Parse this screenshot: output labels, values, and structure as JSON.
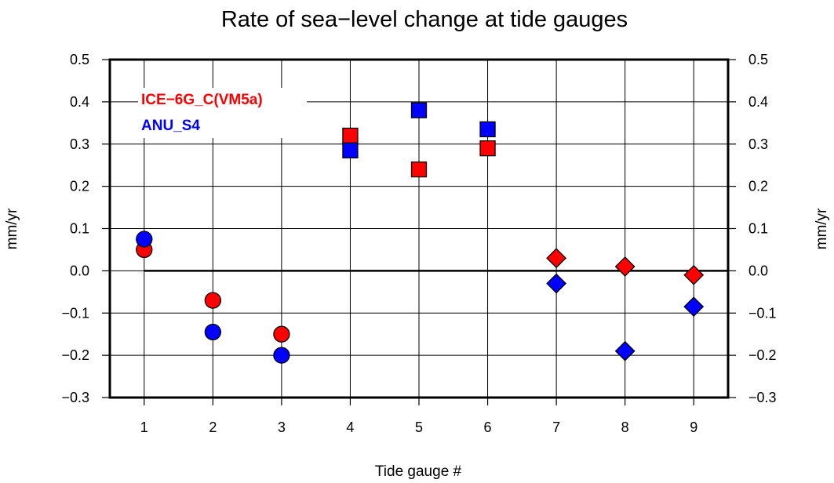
{
  "chart_data": {
    "type": "scatter",
    "title": "Rate of sea−level change at tide gauges",
    "xlabel": "Tide gauge #",
    "ylabel": "mm/yr",
    "ylabel_right": "mm/yr",
    "xlim": [
      0.5,
      9.5
    ],
    "ylim": [
      -0.3,
      0.5
    ],
    "x_ticks": [
      "1",
      "2",
      "3",
      "4",
      "5",
      "6",
      "7",
      "8",
      "9"
    ],
    "y_ticks": [
      "−0.3",
      "−0.2",
      "−0.1",
      "0.0",
      "0.1",
      "0.2",
      "0.3",
      "0.4",
      "0.5"
    ],
    "grid": true,
    "zero_line": true,
    "legend_position": "top-left",
    "series": [
      {
        "name": "ICE−6G_C(VM5a)",
        "color": "#ff0000",
        "points": [
          {
            "x": 1,
            "y": 0.05,
            "marker": "circle"
          },
          {
            "x": 2,
            "y": -0.07,
            "marker": "circle"
          },
          {
            "x": 3,
            "y": -0.15,
            "marker": "circle"
          },
          {
            "x": 4,
            "y": 0.32,
            "marker": "square"
          },
          {
            "x": 5,
            "y": 0.24,
            "marker": "square"
          },
          {
            "x": 6,
            "y": 0.29,
            "marker": "square"
          },
          {
            "x": 7,
            "y": 0.03,
            "marker": "diamond"
          },
          {
            "x": 8,
            "y": 0.01,
            "marker": "diamond"
          },
          {
            "x": 9,
            "y": -0.01,
            "marker": "diamond"
          }
        ]
      },
      {
        "name": "ANU_S4",
        "color": "#0000ff",
        "points": [
          {
            "x": 1,
            "y": 0.075,
            "marker": "circle"
          },
          {
            "x": 2,
            "y": -0.145,
            "marker": "circle"
          },
          {
            "x": 3,
            "y": -0.2,
            "marker": "circle"
          },
          {
            "x": 4,
            "y": 0.285,
            "marker": "square"
          },
          {
            "x": 5,
            "y": 0.38,
            "marker": "square"
          },
          {
            "x": 6,
            "y": 0.335,
            "marker": "square"
          },
          {
            "x": 7,
            "y": -0.03,
            "marker": "diamond"
          },
          {
            "x": 8,
            "y": -0.19,
            "marker": "diamond"
          },
          {
            "x": 9,
            "y": -0.085,
            "marker": "diamond"
          }
        ]
      }
    ]
  }
}
